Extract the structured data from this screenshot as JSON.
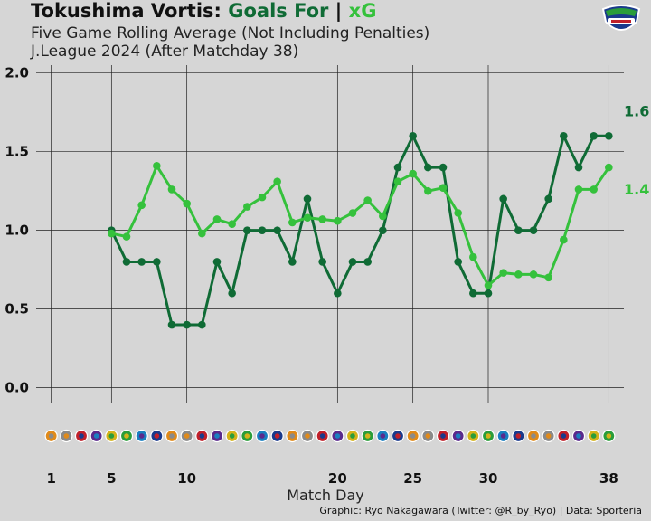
{
  "header": {
    "title_team": "Tokushima Vortis:",
    "title_goals": "Goals For",
    "title_sep": "|",
    "title_xg": "xG",
    "subtitle1": "Five Game Rolling Average (Not Including Penalties)",
    "subtitle2": "J.League 2024 (After Matchday 38)"
  },
  "footer": {
    "xlabel": "Match Day",
    "credit": "Graphic: Ryo Nakagawara (Twitter: @R_by_Ryo) | Data: Sporteria"
  },
  "colors": {
    "goals": "#0f6b35",
    "xg": "#35c13c",
    "background": "#d6d6d6",
    "grid": "#222222"
  },
  "chart_data": {
    "type": "line",
    "xlabel": "Match Day",
    "ylabel": "",
    "xlim": [
      0,
      39
    ],
    "ylim": [
      -0.1,
      2.05
    ],
    "x_ticks": [
      1,
      5,
      10,
      20,
      25,
      30,
      38
    ],
    "y_ticks": [
      "0.0",
      "0.5",
      "1.0",
      "1.5",
      "2.0"
    ],
    "grid": true,
    "series": [
      {
        "name": "Goals For",
        "color": "#0f6b35",
        "end_label": "1.6",
        "x": [
          5,
          6,
          7,
          8,
          9,
          10,
          11,
          12,
          13,
          14,
          15,
          16,
          17,
          18,
          19,
          20,
          21,
          22,
          23,
          24,
          25,
          26,
          27,
          28,
          29,
          30,
          31,
          32,
          33,
          34,
          35,
          36,
          37,
          38
        ],
        "values": [
          1.0,
          0.8,
          0.8,
          0.8,
          0.4,
          0.4,
          0.4,
          0.8,
          0.6,
          1.0,
          1.0,
          1.0,
          0.8,
          1.2,
          0.8,
          0.6,
          0.8,
          0.8,
          1.0,
          1.4,
          1.6,
          1.4,
          1.4,
          0.8,
          0.6,
          0.6,
          1.2,
          1.0,
          1.0,
          1.2,
          1.6,
          1.4,
          1.6,
          1.6
        ]
      },
      {
        "name": "xG",
        "color": "#35c13c",
        "end_label": "1.4",
        "x": [
          5,
          6,
          7,
          8,
          9,
          10,
          11,
          12,
          13,
          14,
          15,
          16,
          17,
          18,
          19,
          20,
          21,
          22,
          23,
          24,
          25,
          26,
          27,
          28,
          29,
          30,
          31,
          32,
          33,
          34,
          35,
          36,
          37,
          38
        ],
        "values": [
          0.98,
          0.96,
          1.16,
          1.41,
          1.26,
          1.17,
          0.98,
          1.07,
          1.04,
          1.15,
          1.21,
          1.31,
          1.05,
          1.08,
          1.07,
          1.06,
          1.11,
          1.19,
          1.09,
          1.31,
          1.36,
          1.25,
          1.27,
          1.11,
          0.83,
          0.65,
          0.73,
          0.72,
          0.72,
          0.7,
          0.94,
          1.26,
          1.26,
          1.4
        ]
      }
    ],
    "opponent_logos": 38
  }
}
